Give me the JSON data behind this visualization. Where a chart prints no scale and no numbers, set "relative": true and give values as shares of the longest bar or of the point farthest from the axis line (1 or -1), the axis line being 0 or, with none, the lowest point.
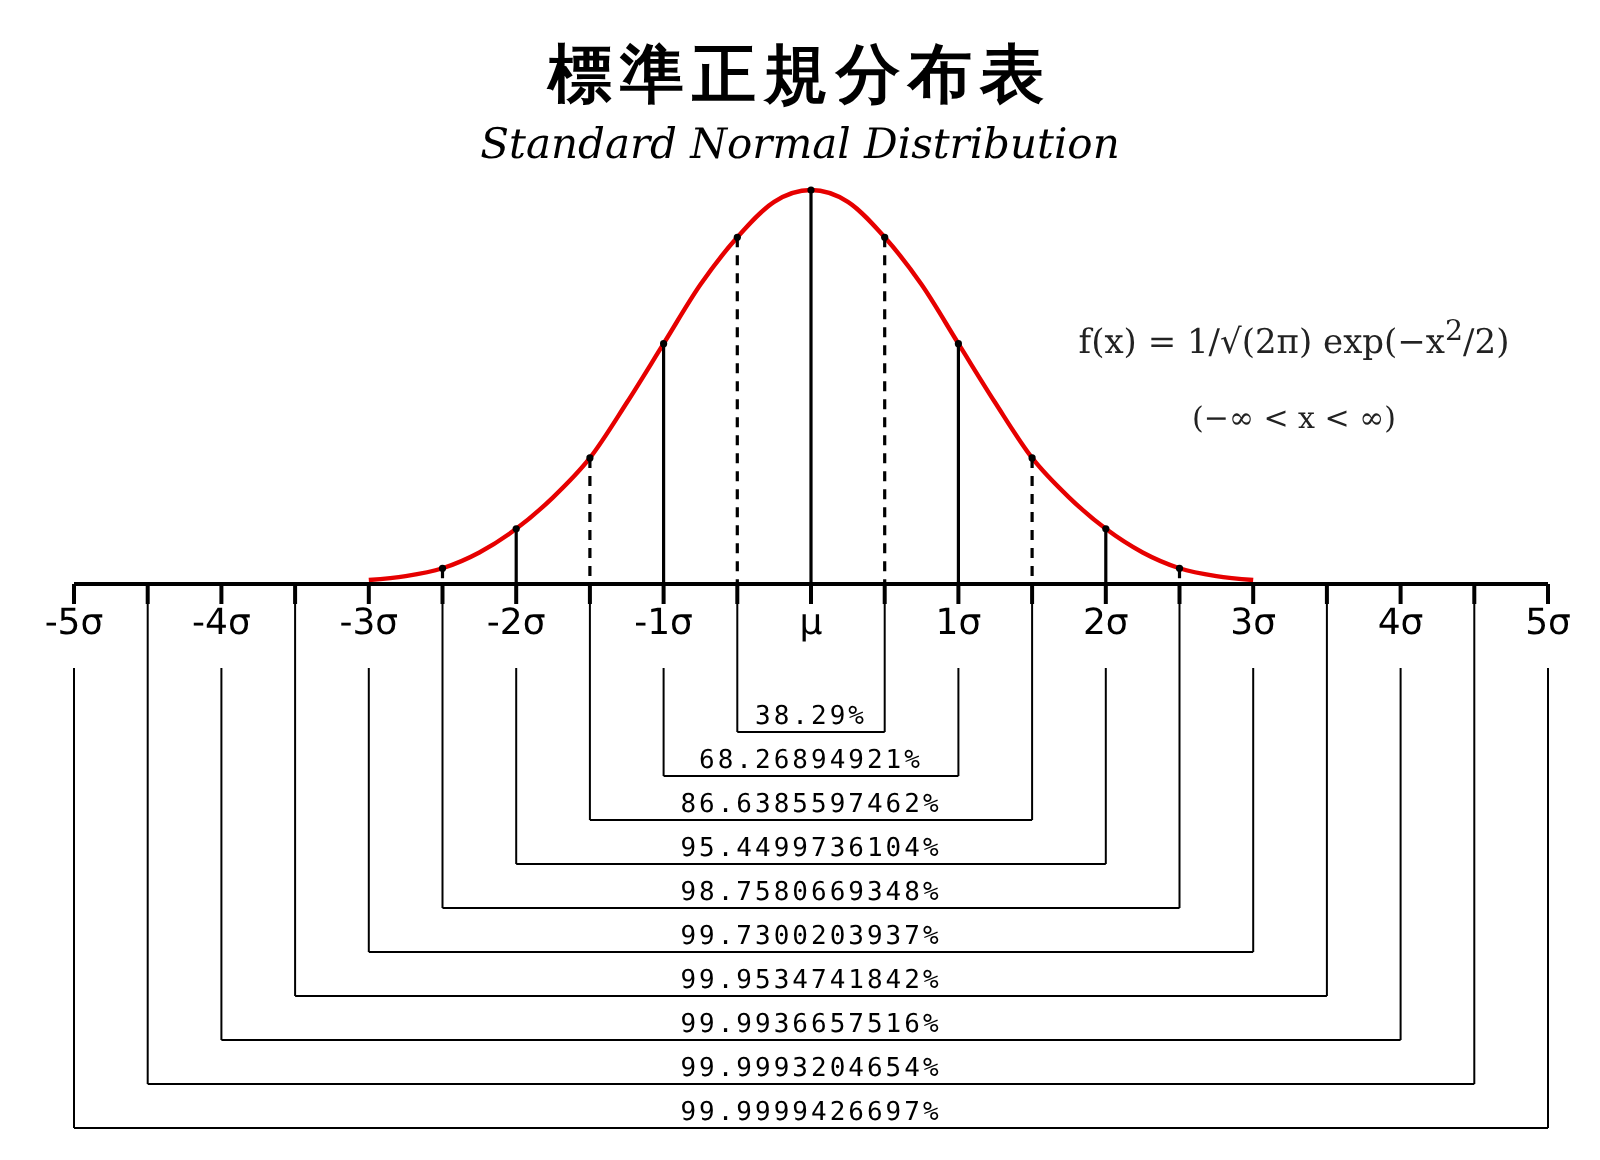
{
  "chart_data": {
    "type": "line",
    "title": "標準正規分布表",
    "subtitle": "Standard Normal Distribution",
    "relative": true,
    "marker": "none",
    "xlim": [
      -5,
      5
    ],
    "xticks": [
      {
        "value": -5,
        "label": "-5σ"
      },
      {
        "value": -4.5,
        "label": null
      },
      {
        "value": -4,
        "label": "-4σ"
      },
      {
        "value": -3.5,
        "label": null
      },
      {
        "value": -3,
        "label": "-3σ"
      },
      {
        "value": -2.5,
        "label": null
      },
      {
        "value": -2,
        "label": "-2σ"
      },
      {
        "value": -1.5,
        "label": null
      },
      {
        "value": -1,
        "label": "-1σ"
      },
      {
        "value": -0.5,
        "label": null
      },
      {
        "value": 0,
        "label": "μ"
      },
      {
        "value": 0.5,
        "label": null
      },
      {
        "value": 1,
        "label": "1σ"
      },
      {
        "value": 1.5,
        "label": null
      },
      {
        "value": 2,
        "label": "2σ"
      },
      {
        "value": 2.5,
        "label": null
      },
      {
        "value": 3,
        "label": "3σ"
      },
      {
        "value": 3.5,
        "label": null
      },
      {
        "value": 4,
        "label": "4σ"
      },
      {
        "value": 4.5,
        "label": null
      },
      {
        "value": 5,
        "label": "5σ"
      }
    ],
    "series": [
      {
        "color": "#e60000",
        "line_style": "solid",
        "x": [
          -3,
          -2.75,
          -2.5,
          -2.25,
          -2,
          -1.75,
          -1.5,
          -1.25,
          -1,
          -0.75,
          -0.5,
          -0.25,
          0,
          0.25,
          0.5,
          0.75,
          1,
          1.25,
          1.5,
          1.75,
          2,
          2.25,
          2.5,
          2.75,
          3
        ],
        "values": [
          0.01,
          0.02,
          0.04,
          0.08,
          0.14,
          0.22,
          0.32,
          0.46,
          0.61,
          0.76,
          0.88,
          0.97,
          1,
          0.97,
          0.88,
          0.76,
          0.61,
          0.46,
          0.32,
          0.22,
          0.14,
          0.08,
          0.04,
          0.02,
          0.01
        ]
      },
      {
        "type": "lollipop",
        "color": "#000000",
        "line_style": "solid",
        "marker": "circle",
        "x": [
          -2,
          -1,
          0,
          1,
          2
        ],
        "values": [
          0.14,
          0.61,
          1,
          0.61,
          0.14
        ]
      },
      {
        "type": "lollipop",
        "color": "#000000",
        "line_style": "dashed",
        "marker": "circle",
        "x": [
          -2.5,
          -1.5,
          -0.5,
          0.5,
          1.5,
          2.5
        ],
        "values": [
          0.04,
          0.32,
          0.88,
          0.88,
          0.32,
          0.04
        ]
      }
    ],
    "annotations": [
      "f(x) = 1/√(2π) exp(−x$^{2}$/2)",
      "(−∞ < x < ∞)",
      "38.29%",
      "68.26894921%",
      "86.6385597462%",
      "95.4499736104%",
      "98.7580669348%",
      "99.7300203937%",
      "99.9534741842%",
      "99.9936657516%",
      "99.9993204654%",
      "99.9999426697%"
    ]
  }
}
